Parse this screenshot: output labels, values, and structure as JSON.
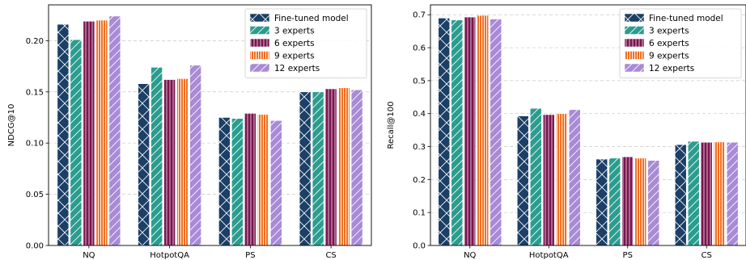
{
  "chart_data": [
    {
      "type": "bar",
      "xlabel": "",
      "ylabel": "NDCG@10",
      "ylim": [
        0,
        0.235
      ],
      "yticks": [
        0.0,
        0.05,
        0.1,
        0.15,
        0.2
      ],
      "ytick_labels": [
        "0.00",
        "0.05",
        "0.10",
        "0.15",
        "0.20"
      ],
      "grid": "horizontal dashed",
      "legend_position": "top-right",
      "categories": [
        "NQ",
        "HotpotQA",
        "PS",
        "CS"
      ],
      "series": [
        {
          "name": "Fine-tuned model",
          "color": "#1b3f66",
          "hatch": "cross",
          "values": [
            0.216,
            0.158,
            0.125,
            0.15
          ]
        },
        {
          "name": "3 experts",
          "color": "#2a9d8f",
          "hatch": "diagonal",
          "values": [
            0.201,
            0.174,
            0.124,
            0.15
          ]
        },
        {
          "name": "6 experts",
          "color": "#7a1550",
          "hatch": "vertical",
          "values": [
            0.219,
            0.162,
            0.129,
            0.153
          ]
        },
        {
          "name": "9 experts",
          "color": "#f07022",
          "hatch": "vertical-fine",
          "values": [
            0.22,
            0.163,
            0.128,
            0.154
          ]
        },
        {
          "name": "12 experts",
          "color": "#a88ad6",
          "hatch": "diagonal",
          "values": [
            0.224,
            0.176,
            0.122,
            0.152
          ]
        }
      ]
    },
    {
      "type": "bar",
      "xlabel": "",
      "ylabel": "Recall@100",
      "ylim": [
        0,
        0.73
      ],
      "yticks": [
        0.0,
        0.1,
        0.2,
        0.3,
        0.4,
        0.5,
        0.6,
        0.7
      ],
      "ytick_labels": [
        "0.0",
        "0.1",
        "0.2",
        "0.3",
        "0.4",
        "0.5",
        "0.6",
        "0.7"
      ],
      "grid": "horizontal dashed",
      "legend_position": "top-right",
      "categories": [
        "NQ",
        "HotpotQA",
        "PS",
        "CS"
      ],
      "series": [
        {
          "name": "Fine-tuned model",
          "color": "#1b3f66",
          "hatch": "cross",
          "values": [
            0.69,
            0.393,
            0.262,
            0.306
          ]
        },
        {
          "name": "3 experts",
          "color": "#2a9d8f",
          "hatch": "diagonal",
          "values": [
            0.684,
            0.416,
            0.265,
            0.316
          ]
        },
        {
          "name": "6 experts",
          "color": "#7a1550",
          "hatch": "vertical",
          "values": [
            0.693,
            0.397,
            0.269,
            0.313
          ]
        },
        {
          "name": "9 experts",
          "color": "#f07022",
          "hatch": "vertical-fine",
          "values": [
            0.698,
            0.4,
            0.265,
            0.314
          ]
        },
        {
          "name": "12 experts",
          "color": "#a88ad6",
          "hatch": "diagonal",
          "values": [
            0.687,
            0.412,
            0.258,
            0.313
          ]
        }
      ]
    }
  ]
}
